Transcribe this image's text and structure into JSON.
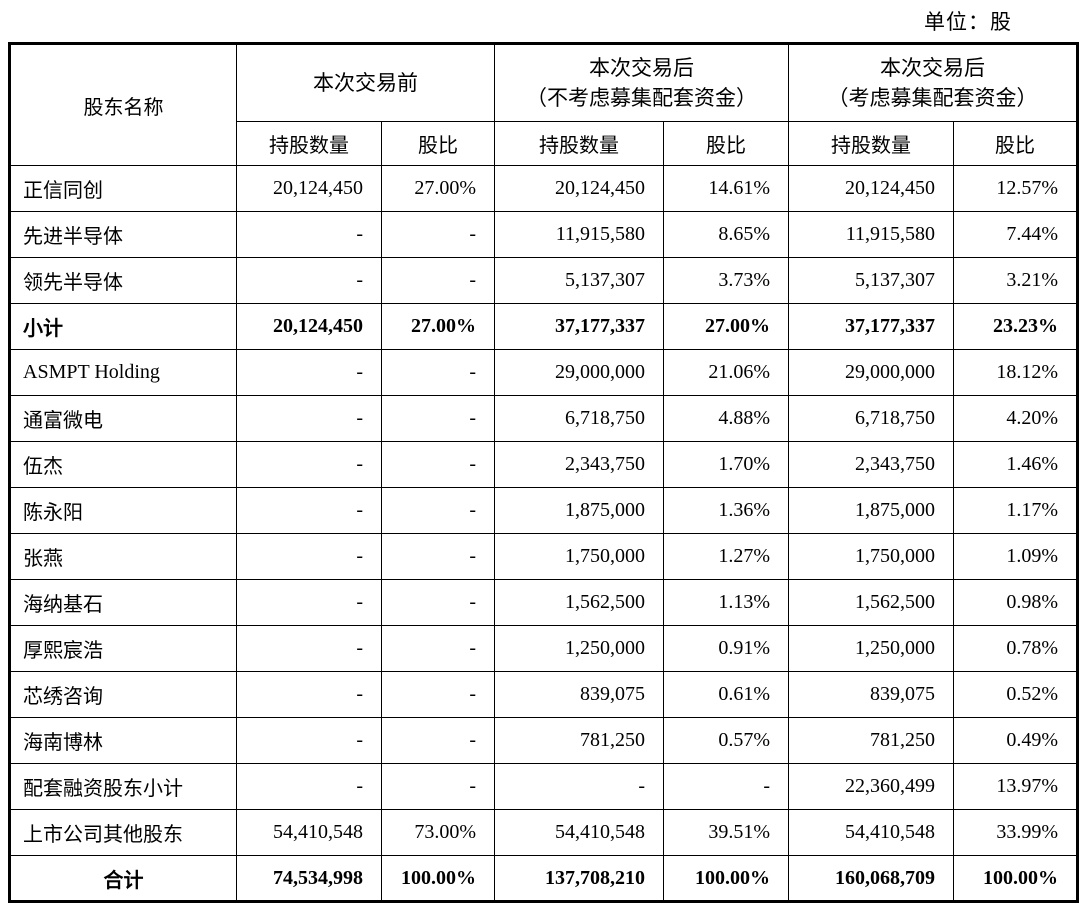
{
  "unit_label": "单位：股",
  "table": {
    "header": {
      "shareholder": "股东名称",
      "groups": [
        {
          "title": "本次交易前",
          "subtitle": ""
        },
        {
          "title": "本次交易后",
          "subtitle": "（不考虑募集配套资金）"
        },
        {
          "title": "本次交易后",
          "subtitle": "（考虑募集配套资金）"
        }
      ],
      "sub_columns": [
        "持股数量",
        "股比"
      ]
    },
    "rows": [
      {
        "name": "正信同创",
        "cells": [
          "20,124,450",
          "27.00%",
          "20,124,450",
          "14.61%",
          "20,124,450",
          "12.57%"
        ],
        "bold": false,
        "center": false
      },
      {
        "name": "先进半导体",
        "cells": [
          "-",
          "-",
          "11,915,580",
          "8.65%",
          "11,915,580",
          "7.44%"
        ],
        "bold": false,
        "center": false
      },
      {
        "name": "领先半导体",
        "cells": [
          "-",
          "-",
          "5,137,307",
          "3.73%",
          "5,137,307",
          "3.21%"
        ],
        "bold": false,
        "center": false
      },
      {
        "name": "小计",
        "cells": [
          "20,124,450",
          "27.00%",
          "37,177,337",
          "27.00%",
          "37,177,337",
          "23.23%"
        ],
        "bold": true,
        "center": false
      },
      {
        "name": "ASMPT Holding",
        "cells": [
          "-",
          "-",
          "29,000,000",
          "21.06%",
          "29,000,000",
          "18.12%"
        ],
        "bold": false,
        "center": false
      },
      {
        "name": "通富微电",
        "cells": [
          "-",
          "-",
          "6,718,750",
          "4.88%",
          "6,718,750",
          "4.20%"
        ],
        "bold": false,
        "center": false
      },
      {
        "name": "伍杰",
        "cells": [
          "-",
          "-",
          "2,343,750",
          "1.70%",
          "2,343,750",
          "1.46%"
        ],
        "bold": false,
        "center": false
      },
      {
        "name": "陈永阳",
        "cells": [
          "-",
          "-",
          "1,875,000",
          "1.36%",
          "1,875,000",
          "1.17%"
        ],
        "bold": false,
        "center": false
      },
      {
        "name": "张燕",
        "cells": [
          "-",
          "-",
          "1,750,000",
          "1.27%",
          "1,750,000",
          "1.09%"
        ],
        "bold": false,
        "center": false
      },
      {
        "name": "海纳基石",
        "cells": [
          "-",
          "-",
          "1,562,500",
          "1.13%",
          "1,562,500",
          "0.98%"
        ],
        "bold": false,
        "center": false
      },
      {
        "name": "厚熙宸浩",
        "cells": [
          "-",
          "-",
          "1,250,000",
          "0.91%",
          "1,250,000",
          "0.78%"
        ],
        "bold": false,
        "center": false
      },
      {
        "name": "芯绣咨询",
        "cells": [
          "-",
          "-",
          "839,075",
          "0.61%",
          "839,075",
          "0.52%"
        ],
        "bold": false,
        "center": false
      },
      {
        "name": "海南博林",
        "cells": [
          "-",
          "-",
          "781,250",
          "0.57%",
          "781,250",
          "0.49%"
        ],
        "bold": false,
        "center": false
      },
      {
        "name": "配套融资股东小计",
        "cells": [
          "-",
          "-",
          "-",
          "-",
          "22,360,499",
          "13.97%"
        ],
        "bold": false,
        "center": false
      },
      {
        "name": "上市公司其他股东",
        "cells": [
          "54,410,548",
          "73.00%",
          "54,410,548",
          "39.51%",
          "54,410,548",
          "33.99%"
        ],
        "bold": false,
        "center": false
      },
      {
        "name": "合计",
        "cells": [
          "74,534,998",
          "100.00%",
          "137,708,210",
          "100.00%",
          "160,068,709",
          "100.00%"
        ],
        "bold": true,
        "center": true
      }
    ]
  }
}
